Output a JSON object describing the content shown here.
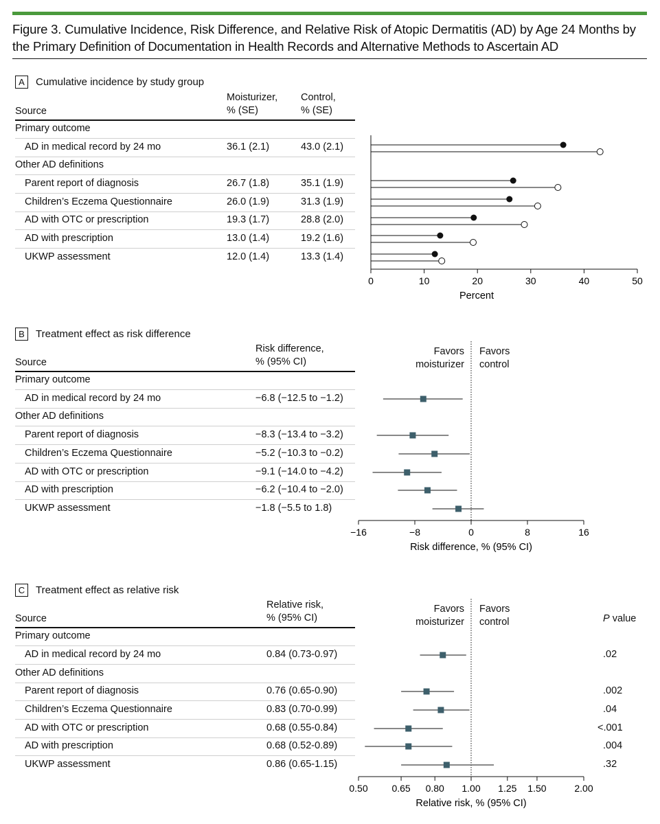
{
  "figure": {
    "title": "Figure 3. Cumulative Incidence, Risk Difference, and Relative Risk of Atopic Dermatitis (AD) by Age 24 Months by the Primary Definition of Documentation in Health Records and Alternative Methods to Ascertain AD",
    "accent_color": "#4a9a3c",
    "marker_color": "#3d5f6b"
  },
  "groups": {
    "primary": "Primary outcome",
    "other": "Other AD definitions"
  },
  "panelA": {
    "letter": "A",
    "title": "Cumulative incidence by study group",
    "source_header": "Source",
    "col1_header": [
      "Moisturizer,",
      "% (SE)"
    ],
    "col2_header": [
      "Control,",
      "% (SE)"
    ],
    "rows": [
      {
        "source": "AD in medical record by 24 mo",
        "moisturizer": "36.1 (2.1)",
        "control": "43.0 (2.1)"
      },
      {
        "source": "Parent report of diagnosis",
        "moisturizer": "26.7 (1.8)",
        "control": "35.1 (1.9)"
      },
      {
        "source": "Children’s Eczema Questionnaire",
        "moisturizer": "26.0 (1.9)",
        "control": "31.3 (1.9)"
      },
      {
        "source": "AD with OTC or prescription",
        "moisturizer": "19.3 (1.7)",
        "control": "28.8 (2.0)"
      },
      {
        "source": "AD with prescription",
        "moisturizer": "13.0 (1.4)",
        "control": "19.2 (1.6)"
      },
      {
        "source": "UKWP assessment",
        "moisturizer": "12.0 (1.4)",
        "control": "13.3 (1.4)"
      }
    ]
  },
  "panelB": {
    "letter": "B",
    "title": "Treatment effect as risk difference",
    "source_header": "Source",
    "col_header": [
      "Risk difference,",
      "% (95% CI)"
    ],
    "favors_left": [
      "Favors",
      "moisturizer"
    ],
    "favors_right": [
      "Favors",
      "control"
    ],
    "rows": [
      {
        "source": "AD in medical record by 24 mo",
        "value": "−6.8 (−12.5 to −1.2)"
      },
      {
        "source": "Parent report of diagnosis",
        "value": "−8.3 (−13.4 to −3.2)"
      },
      {
        "source": "Children’s Eczema Questionnaire",
        "value": "−5.2 (−10.3 to −0.2)"
      },
      {
        "source": "AD with OTC or prescription",
        "value": "−9.1 (−14.0 to −4.2)"
      },
      {
        "source": "AD with prescription",
        "value": "−6.2 (−10.4 to −2.0)"
      },
      {
        "source": "UKWP assessment",
        "value": "−1.8 (−5.5 to 1.8)"
      }
    ]
  },
  "panelC": {
    "letter": "C",
    "title": "Treatment effect as relative risk",
    "source_header": "Source",
    "col_header": [
      "Relative risk,",
      "% (95% CI)"
    ],
    "favors_left": [
      "Favors",
      "moisturizer"
    ],
    "favors_right": [
      "Favors",
      "control"
    ],
    "p_header": "value",
    "p_header_italic": "P",
    "rows": [
      {
        "source": "AD in medical record by 24 mo",
        "value": "0.84 (0.73-0.97)",
        "p": ".02"
      },
      {
        "source": "Parent report of diagnosis",
        "value": "0.76 (0.65-0.90)",
        "p": ".002"
      },
      {
        "source": "Children’s Eczema Questionnaire",
        "value": "0.83 (0.70-0.99)",
        "p": ".04"
      },
      {
        "source": "AD with OTC or prescription",
        "value": "0.68 (0.55-0.84)",
        "p": "<.001"
      },
      {
        "source": "AD with prescription",
        "value": "0.68 (0.52-0.89)",
        "p": ".004"
      },
      {
        "source": "UKWP assessment",
        "value": "0.86 (0.65-1.15)",
        "p": ".32"
      }
    ]
  },
  "chart_data": [
    {
      "type": "scatter",
      "title": "Cumulative incidence by study group",
      "xlabel": "Percent",
      "xlim": [
        0,
        50
      ],
      "xticks": [
        0,
        10,
        20,
        30,
        40,
        50
      ],
      "categories": [
        "AD in medical record by 24 mo",
        "Parent report of diagnosis",
        "Children’s Eczema Questionnaire",
        "AD with OTC or prescription",
        "AD with prescription",
        "UKWP assessment"
      ],
      "series": [
        {
          "values": [
            36.1,
            26.7,
            26.0,
            19.3,
            13.0,
            12.0
          ],
          "marker": "filled-circle"
        },
        {
          "values": [
            43.0,
            35.1,
            31.3,
            28.8,
            19.2,
            13.3
          ],
          "marker": "open-circle"
        }
      ]
    },
    {
      "type": "scatter",
      "title": "Treatment effect as risk difference",
      "xlabel": "Risk difference, % (95% CI)",
      "xlim": [
        -16,
        16
      ],
      "xticks": [
        -16,
        -8,
        0,
        8,
        16
      ],
      "reference_line": 0,
      "categories": [
        "AD in medical record by 24 mo",
        "Parent report of diagnosis",
        "Children’s Eczema Questionnaire",
        "AD with OTC or prescription",
        "AD with prescription",
        "UKWP assessment"
      ],
      "estimate": [
        -6.8,
        -8.3,
        -5.2,
        -9.1,
        -6.2,
        -1.8
      ],
      "lower": [
        -12.5,
        -13.4,
        -10.3,
        -14.0,
        -10.4,
        -5.5
      ],
      "upper": [
        -1.2,
        -3.2,
        -0.2,
        -4.2,
        -2.0,
        1.8
      ]
    },
    {
      "type": "scatter",
      "title": "Treatment effect as relative risk",
      "xlabel": "Relative risk, % (95% CI)",
      "xscale": "log",
      "xlim": [
        0.5,
        2.0
      ],
      "xticks": [
        0.5,
        0.65,
        0.8,
        1.0,
        1.25,
        1.5,
        2.0
      ],
      "xtick_labels": [
        "0.50",
        "0.65",
        "0.80",
        "1.00",
        "1.25",
        "1.50",
        "2.00"
      ],
      "reference_line": 1.0,
      "categories": [
        "AD in medical record by 24 mo",
        "Parent report of diagnosis",
        "Children’s Eczema Questionnaire",
        "AD with OTC or prescription",
        "AD with prescription",
        "UKWP assessment"
      ],
      "estimate": [
        0.84,
        0.76,
        0.83,
        0.68,
        0.68,
        0.86
      ],
      "lower": [
        0.73,
        0.65,
        0.7,
        0.55,
        0.52,
        0.65
      ],
      "upper": [
        0.97,
        0.9,
        0.99,
        0.84,
        0.89,
        1.15
      ]
    }
  ]
}
